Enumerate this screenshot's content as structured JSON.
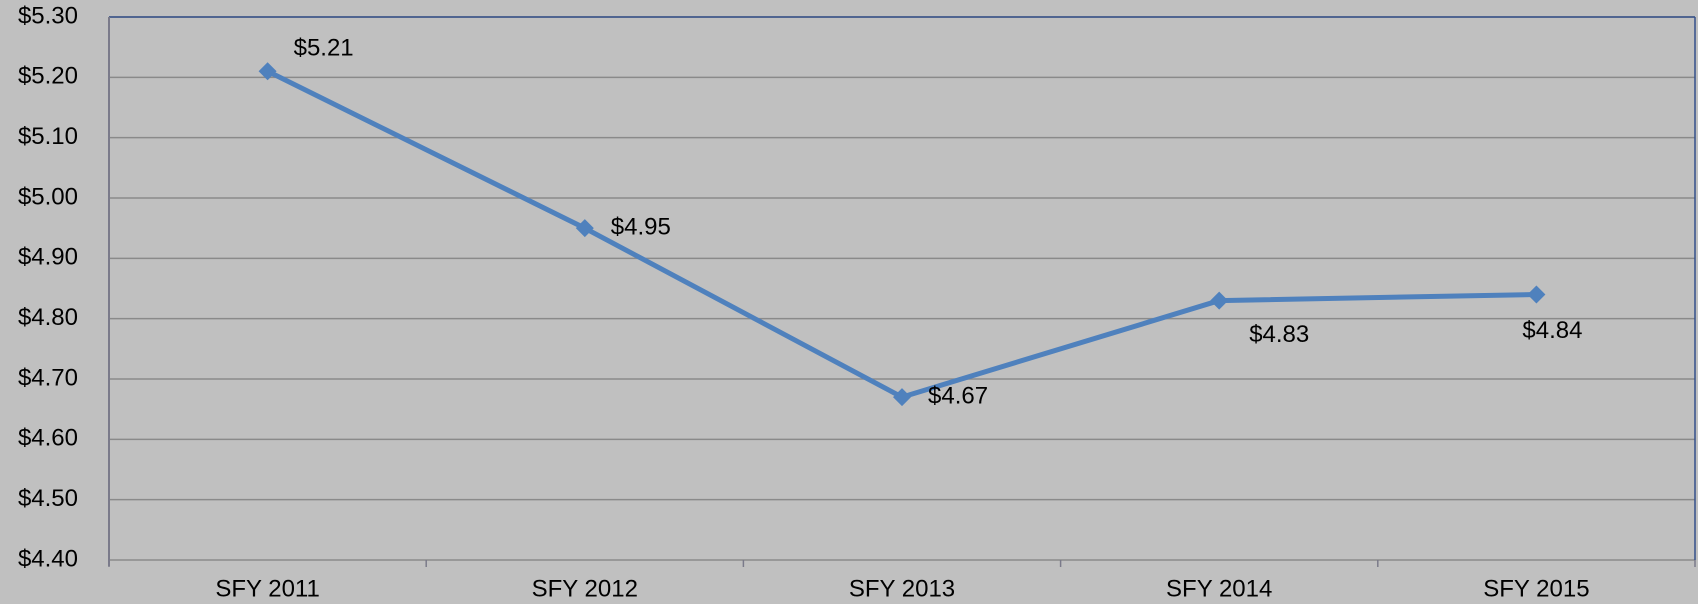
{
  "chart_data": {
    "type": "line",
    "categories": [
      "SFY 2011",
      "SFY 2012",
      "SFY 2013",
      "SFY 2014",
      "SFY 2015"
    ],
    "series": [
      {
        "color": "#4f81bd",
        "values": [
          5.21,
          4.95,
          4.67,
          4.83,
          4.84
        ],
        "value_labels": [
          "$5.21",
          "$4.95",
          "$4.67",
          "$4.83",
          "$4.84"
        ]
      }
    ],
    "ylim": [
      4.4,
      5.3
    ],
    "yticks": [
      {
        "value": 4.4,
        "label": "$4.40"
      },
      {
        "value": 4.5,
        "label": "$4.50"
      },
      {
        "value": 4.6,
        "label": "$4.60"
      },
      {
        "value": 4.7,
        "label": "$4.70"
      },
      {
        "value": 4.8,
        "label": "$4.80"
      },
      {
        "value": 4.9,
        "label": "$4.90"
      },
      {
        "value": 5.0,
        "label": "$5.00"
      },
      {
        "value": 5.1,
        "label": "$5.10"
      },
      {
        "value": 5.2,
        "label": "$5.20"
      },
      {
        "value": 5.3,
        "label": "$5.30"
      }
    ],
    "grid": true
  }
}
